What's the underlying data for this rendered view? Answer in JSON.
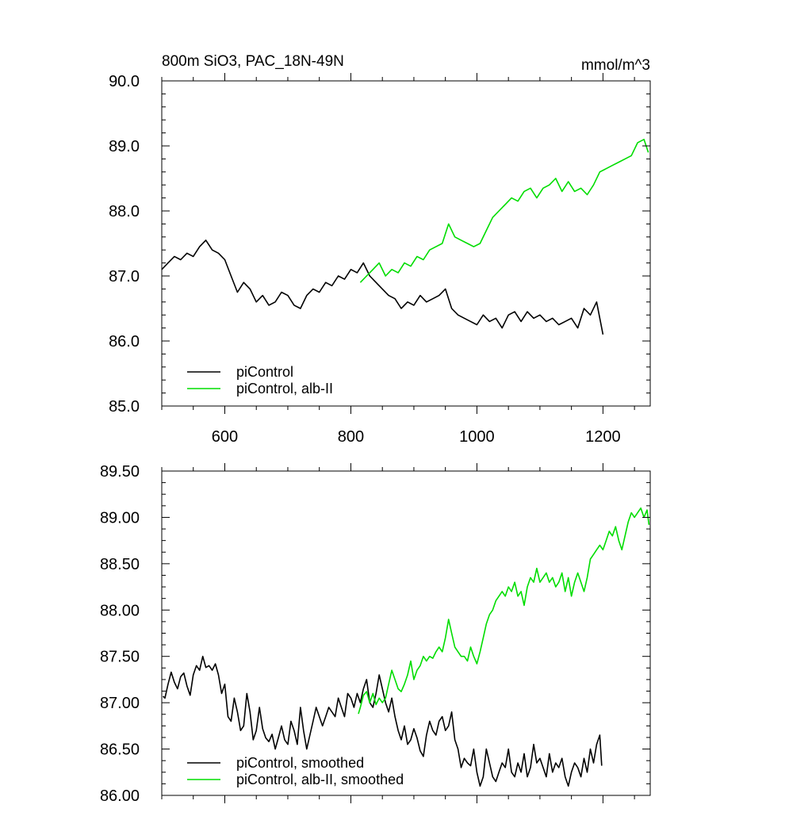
{
  "chart_data": [
    {
      "type": "line",
      "title": "800m SiO3, PAC_18N-49N",
      "units": "mmol/m^3",
      "xlim": [
        500,
        1275
      ],
      "ylim": [
        85.0,
        90.0
      ],
      "xticks": [
        "600",
        "800",
        "1000",
        "1200"
      ],
      "xtick_values": [
        600,
        800,
        1000,
        1200
      ],
      "yticks": [
        "85.0",
        "86.0",
        "87.0",
        "88.0",
        "89.0",
        "90.0"
      ],
      "ytick_values": [
        85,
        86,
        87,
        88,
        89,
        90
      ],
      "legend_position": "bottom-left",
      "series": [
        {
          "name": "piControl",
          "color": "#000000",
          "x": [
            500,
            510,
            520,
            530,
            540,
            550,
            560,
            570,
            580,
            590,
            600,
            610,
            620,
            630,
            640,
            650,
            660,
            670,
            680,
            690,
            700,
            710,
            720,
            730,
            740,
            750,
            760,
            770,
            780,
            790,
            800,
            810,
            820,
            830,
            840,
            850,
            860,
            870,
            880,
            890,
            900,
            910,
            920,
            930,
            940,
            950,
            960,
            970,
            980,
            990,
            1000,
            1010,
            1020,
            1030,
            1040,
            1050,
            1060,
            1070,
            1080,
            1090,
            1100,
            1110,
            1120,
            1130,
            1140,
            1150,
            1160,
            1170,
            1180,
            1190,
            1200
          ],
          "values": [
            87.1,
            87.2,
            87.3,
            87.25,
            87.35,
            87.3,
            87.45,
            87.55,
            87.4,
            87.35,
            87.25,
            87.0,
            86.75,
            86.9,
            86.8,
            86.6,
            86.7,
            86.55,
            86.6,
            86.75,
            86.7,
            86.55,
            86.5,
            86.7,
            86.8,
            86.75,
            86.9,
            86.85,
            87.0,
            86.95,
            87.1,
            87.05,
            87.2,
            87.0,
            86.9,
            86.8,
            86.7,
            86.65,
            86.5,
            86.6,
            86.55,
            86.7,
            86.6,
            86.65,
            86.7,
            86.8,
            86.5,
            86.4,
            86.35,
            86.3,
            86.25,
            86.4,
            86.3,
            86.35,
            86.2,
            86.4,
            86.45,
            86.3,
            86.45,
            86.35,
            86.4,
            86.3,
            86.35,
            86.25,
            86.3,
            86.35,
            86.2,
            86.5,
            86.4,
            86.6,
            86.1
          ]
        },
        {
          "name": "piControl, alb-II",
          "color": "#00dd00",
          "x": [
            815,
            825,
            835,
            845,
            855,
            865,
            875,
            885,
            895,
            905,
            915,
            925,
            935,
            945,
            955,
            965,
            975,
            985,
            995,
            1005,
            1015,
            1025,
            1035,
            1045,
            1055,
            1065,
            1075,
            1085,
            1095,
            1105,
            1115,
            1125,
            1135,
            1145,
            1155,
            1165,
            1175,
            1185,
            1195,
            1205,
            1215,
            1225,
            1235,
            1245,
            1255,
            1265,
            1272
          ],
          "values": [
            86.9,
            87.0,
            87.1,
            87.2,
            87.0,
            87.1,
            87.05,
            87.2,
            87.15,
            87.3,
            87.25,
            87.4,
            87.45,
            87.5,
            87.8,
            87.6,
            87.55,
            87.5,
            87.45,
            87.5,
            87.7,
            87.9,
            88.0,
            88.1,
            88.2,
            88.15,
            88.3,
            88.35,
            88.2,
            88.35,
            88.4,
            88.5,
            88.3,
            88.45,
            88.3,
            88.35,
            88.25,
            88.4,
            88.6,
            88.65,
            88.7,
            88.75,
            88.8,
            88.85,
            89.05,
            89.1,
            88.9
          ]
        }
      ]
    },
    {
      "type": "line",
      "xlim": [
        500,
        1275
      ],
      "ylim": [
        86.0,
        89.5
      ],
      "xtick_values": [
        600,
        800,
        1000,
        1200
      ],
      "yticks": [
        "86.00",
        "86.50",
        "87.00",
        "87.50",
        "88.00",
        "88.50",
        "89.00",
        "89.50"
      ],
      "ytick_values": [
        86.0,
        86.5,
        87.0,
        87.5,
        88.0,
        88.5,
        89.0,
        89.5
      ],
      "legend_position": "bottom-left",
      "series": [
        {
          "name": "piControl, smoothed",
          "color": "#000000",
          "x": [
            502,
            505,
            510,
            515,
            520,
            525,
            530,
            535,
            540,
            545,
            550,
            555,
            560,
            565,
            570,
            575,
            580,
            585,
            590,
            595,
            600,
            605,
            610,
            615,
            620,
            625,
            630,
            635,
            640,
            645,
            650,
            655,
            660,
            665,
            670,
            675,
            680,
            685,
            690,
            695,
            700,
            705,
            710,
            715,
            720,
            725,
            730,
            735,
            740,
            745,
            750,
            755,
            760,
            765,
            770,
            775,
            780,
            785,
            790,
            795,
            800,
            805,
            810,
            815,
            820,
            825,
            830,
            835,
            840,
            845,
            850,
            855,
            860,
            865,
            870,
            875,
            880,
            885,
            890,
            895,
            900,
            905,
            910,
            915,
            920,
            925,
            930,
            935,
            940,
            945,
            950,
            955,
            960,
            965,
            970,
            975,
            980,
            985,
            990,
            995,
            1000,
            1005,
            1010,
            1015,
            1020,
            1025,
            1030,
            1035,
            1040,
            1045,
            1050,
            1055,
            1060,
            1065,
            1070,
            1075,
            1080,
            1085,
            1090,
            1095,
            1100,
            1105,
            1110,
            1115,
            1120,
            1125,
            1130,
            1135,
            1140,
            1145,
            1150,
            1155,
            1160,
            1165,
            1170,
            1175,
            1180,
            1185,
            1190,
            1195,
            1198
          ],
          "values": [
            87.07,
            87.05,
            87.2,
            87.33,
            87.22,
            87.15,
            87.28,
            87.32,
            87.18,
            87.08,
            87.3,
            87.4,
            87.35,
            87.5,
            87.38,
            87.4,
            87.35,
            87.42,
            87.3,
            87.1,
            87.2,
            86.85,
            86.8,
            87.05,
            86.9,
            86.7,
            86.75,
            87.1,
            86.9,
            86.6,
            86.7,
            86.95,
            86.72,
            86.62,
            86.58,
            86.66,
            86.5,
            86.62,
            86.75,
            86.6,
            86.55,
            86.8,
            86.7,
            86.55,
            86.95,
            86.7,
            86.5,
            86.65,
            86.8,
            86.95,
            86.85,
            86.75,
            86.85,
            86.95,
            86.9,
            86.85,
            87.05,
            86.95,
            86.85,
            87.1,
            87.05,
            86.95,
            87.1,
            87.0,
            87.15,
            87.25,
            87.0,
            86.95,
            87.1,
            87.3,
            87.15,
            87.0,
            86.9,
            87.05,
            86.85,
            86.7,
            86.6,
            86.75,
            86.55,
            86.6,
            86.72,
            86.62,
            86.48,
            86.42,
            86.65,
            86.8,
            86.7,
            86.65,
            86.8,
            86.85,
            86.7,
            86.75,
            86.9,
            86.6,
            86.5,
            86.3,
            86.4,
            86.35,
            86.32,
            86.5,
            86.25,
            86.1,
            86.2,
            86.5,
            86.35,
            86.2,
            86.15,
            86.25,
            86.35,
            86.3,
            86.5,
            86.25,
            86.2,
            86.35,
            86.25,
            86.45,
            86.2,
            86.3,
            86.55,
            86.35,
            86.4,
            86.3,
            86.2,
            86.45,
            86.25,
            86.35,
            86.3,
            86.4,
            86.2,
            86.1,
            86.25,
            86.35,
            86.3,
            86.2,
            86.4,
            86.25,
            86.5,
            86.35,
            86.55,
            86.65,
            86.32
          ]
        },
        {
          "name": "piControl, alb-II, smoothed",
          "color": "#00dd00",
          "x": [
            812,
            815,
            820,
            825,
            830,
            835,
            840,
            845,
            850,
            855,
            860,
            865,
            870,
            875,
            880,
            885,
            890,
            895,
            900,
            905,
            910,
            915,
            920,
            925,
            930,
            935,
            940,
            945,
            950,
            955,
            960,
            965,
            970,
            975,
            980,
            985,
            990,
            995,
            1000,
            1005,
            1010,
            1015,
            1020,
            1025,
            1030,
            1035,
            1040,
            1045,
            1050,
            1055,
            1060,
            1065,
            1070,
            1075,
            1080,
            1085,
            1090,
            1095,
            1100,
            1105,
            1110,
            1115,
            1120,
            1125,
            1130,
            1135,
            1140,
            1145,
            1150,
            1155,
            1160,
            1165,
            1170,
            1175,
            1180,
            1185,
            1190,
            1195,
            1200,
            1205,
            1210,
            1215,
            1220,
            1225,
            1230,
            1235,
            1240,
            1245,
            1250,
            1255,
            1260,
            1265,
            1270,
            1273
          ],
          "values": [
            86.88,
            86.95,
            87.08,
            87.12,
            87.0,
            87.1,
            86.98,
            87.05,
            87.0,
            87.05,
            87.2,
            87.35,
            87.25,
            87.15,
            87.12,
            87.2,
            87.3,
            87.45,
            87.25,
            87.35,
            87.4,
            87.5,
            87.45,
            87.5,
            87.48,
            87.55,
            87.6,
            87.55,
            87.7,
            87.9,
            87.75,
            87.6,
            87.55,
            87.5,
            87.5,
            87.45,
            87.6,
            87.5,
            87.42,
            87.55,
            87.7,
            87.85,
            87.95,
            88.0,
            88.1,
            88.15,
            88.2,
            88.15,
            88.25,
            88.2,
            88.3,
            88.15,
            88.2,
            88.05,
            88.25,
            88.35,
            88.3,
            88.45,
            88.3,
            88.35,
            88.4,
            88.3,
            88.35,
            88.25,
            88.3,
            88.4,
            88.2,
            88.35,
            88.15,
            88.3,
            88.4,
            88.3,
            88.2,
            88.35,
            88.55,
            88.6,
            88.65,
            88.7,
            88.65,
            88.75,
            88.85,
            88.8,
            88.9,
            88.75,
            88.65,
            88.8,
            88.95,
            89.05,
            89.0,
            89.05,
            89.1,
            89.0,
            89.08,
            88.92
          ]
        }
      ]
    }
  ]
}
